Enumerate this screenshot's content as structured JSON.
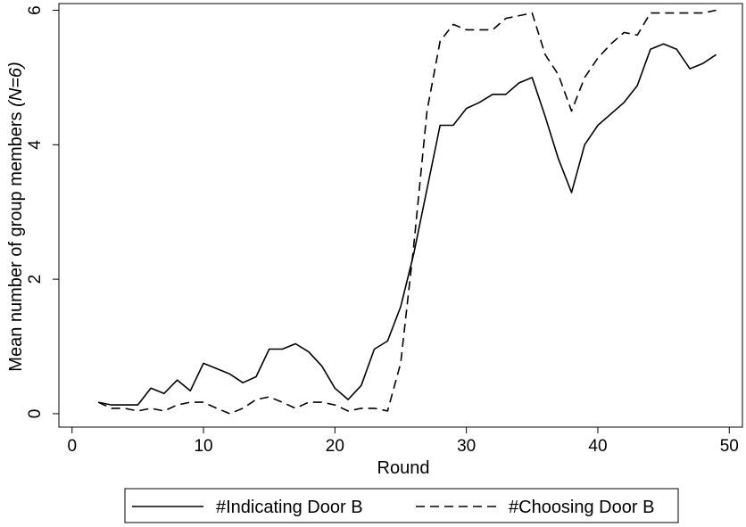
{
  "chart_data": {
    "type": "line",
    "title": "",
    "xlabel": "Round",
    "ylabel_main": "Mean number of group members ",
    "ylabel_italic": "(N=6)",
    "xlim": [
      -1,
      51
    ],
    "ylim": [
      -0.2,
      6.1
    ],
    "xticks": [
      "0",
      "10",
      "20",
      "30",
      "40",
      "50"
    ],
    "yticks": [
      "0",
      "2",
      "4",
      "6"
    ],
    "grid": false,
    "legend_position": "bottom",
    "series": [
      {
        "name": "#Indicating Door B",
        "style": "solid",
        "x": [
          2,
          3,
          4,
          5,
          6,
          7,
          8,
          9,
          10,
          11,
          12,
          13,
          14,
          15,
          16,
          17,
          18,
          19,
          20,
          21,
          22,
          23,
          24,
          25,
          26,
          27,
          28,
          29,
          30,
          31,
          32,
          33,
          34,
          35,
          36,
          37,
          38,
          39,
          40,
          41,
          42,
          43,
          44,
          45,
          46,
          47,
          48,
          49
        ],
        "y": [
          0.17,
          0.13,
          0.13,
          0.13,
          0.38,
          0.3,
          0.5,
          0.34,
          0.75,
          0.67,
          0.59,
          0.46,
          0.55,
          0.96,
          0.96,
          1.04,
          0.92,
          0.71,
          0.38,
          0.21,
          0.42,
          0.96,
          1.08,
          1.59,
          2.38,
          3.34,
          4.29,
          4.29,
          4.54,
          4.63,
          4.75,
          4.75,
          4.92,
          5.0,
          4.42,
          3.79,
          3.29,
          4.0,
          4.29,
          4.46,
          4.63,
          4.88,
          5.42,
          5.5,
          5.42,
          5.13,
          5.21,
          5.34
        ]
      },
      {
        "name": "#Choosing Door B",
        "style": "dashed",
        "x": [
          2,
          3,
          4,
          5,
          6,
          7,
          8,
          9,
          10,
          11,
          12,
          13,
          14,
          15,
          16,
          17,
          18,
          19,
          20,
          21,
          22,
          23,
          24,
          25,
          26,
          27,
          28,
          29,
          30,
          31,
          32,
          33,
          34,
          35,
          36,
          37,
          38,
          39,
          40,
          41,
          42,
          43,
          44,
          45,
          46,
          47,
          48,
          49
        ],
        "y": [
          0.17,
          0.08,
          0.08,
          0.04,
          0.08,
          0.04,
          0.13,
          0.17,
          0.17,
          0.08,
          0.0,
          0.08,
          0.21,
          0.25,
          0.17,
          0.08,
          0.17,
          0.17,
          0.13,
          0.04,
          0.08,
          0.08,
          0.04,
          0.75,
          2.5,
          4.5,
          5.54,
          5.79,
          5.71,
          5.71,
          5.71,
          5.88,
          5.92,
          5.96,
          5.34,
          5.04,
          4.5,
          5.0,
          5.29,
          5.5,
          5.67,
          5.63,
          5.96,
          5.96,
          5.96,
          5.96,
          5.96,
          6.0
        ]
      }
    ]
  }
}
